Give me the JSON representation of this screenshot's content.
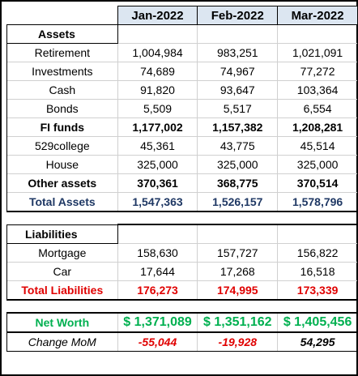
{
  "columns": [
    "Jan-2022",
    "Feb-2022",
    "Mar-2022"
  ],
  "assets": {
    "title": "Assets",
    "rows": [
      {
        "label": "Retirement",
        "values": [
          "1,004,984",
          "983,251",
          "1,021,091"
        ]
      },
      {
        "label": "Investments",
        "values": [
          "74,689",
          "74,967",
          "77,272"
        ]
      },
      {
        "label": "Cash",
        "values": [
          "91,820",
          "93,647",
          "103,364"
        ]
      },
      {
        "label": "Bonds",
        "values": [
          "5,509",
          "5,517",
          "6,554"
        ]
      },
      {
        "label": "FI funds",
        "values": [
          "1,177,002",
          "1,157,382",
          "1,208,281"
        ]
      },
      {
        "label": "529college",
        "values": [
          "45,361",
          "43,775",
          "45,514"
        ]
      },
      {
        "label": "House",
        "values": [
          "325,000",
          "325,000",
          "325,000"
        ]
      },
      {
        "label": "Other assets",
        "values": [
          "370,361",
          "368,775",
          "370,514"
        ]
      }
    ],
    "total": {
      "label": "Total Assets",
      "values": [
        "1,547,363",
        "1,526,157",
        "1,578,796"
      ]
    }
  },
  "liabilities": {
    "title": "Liabilities",
    "rows": [
      {
        "label": "Mortgage",
        "values": [
          "158,630",
          "157,727",
          "156,822"
        ]
      },
      {
        "label": "Car",
        "values": [
          "17,644",
          "17,268",
          "16,518"
        ]
      }
    ],
    "total": {
      "label": "Total Liabilities",
      "values": [
        "176,273",
        "174,995",
        "173,339"
      ]
    }
  },
  "net_worth": {
    "label": "Net Worth",
    "values": [
      "$ 1,371,089",
      "$ 1,351,162",
      "$ 1,405,456"
    ]
  },
  "change": {
    "label": "Change MoM",
    "values": [
      "-55,044",
      "-19,928",
      "54,295"
    ]
  },
  "colors": {
    "header_fill": "#dce6f1",
    "total_assets": "#1f3864",
    "total_liabilities": "#e00000",
    "net_worth": "#00b050",
    "negative": "#e00000"
  }
}
